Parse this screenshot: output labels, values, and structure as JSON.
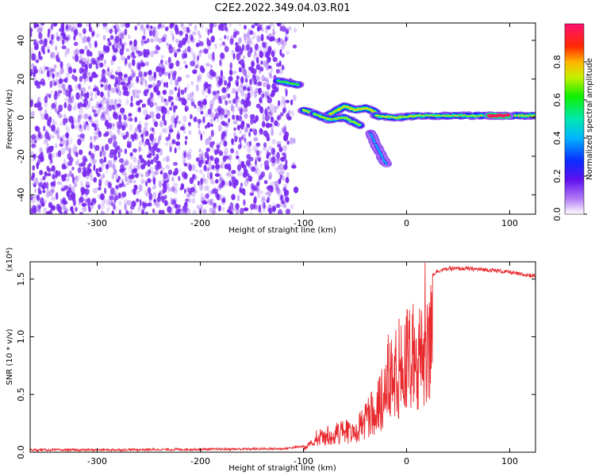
{
  "title": "C2E2.2022.349.04.03.R01",
  "colors": {
    "noise": "#7b2cf0",
    "snr_line": "#e8282c"
  },
  "chart_data": [
    {
      "type": "heatmap",
      "xlabel": "Height of straight line (km)",
      "ylabel": "Frequency (Hz)",
      "xlim": [
        -365,
        125
      ],
      "ylim": [
        -50,
        49
      ],
      "x_ticks": [
        -300,
        -200,
        -100,
        0,
        100
      ],
      "x_tick_labels": [
        "-300",
        "-200",
        "-100",
        "0",
        "100"
      ],
      "y_ticks": [
        -40,
        -20,
        0,
        20,
        40
      ],
      "y_tick_labels": [
        "-40",
        "-20",
        "0",
        "20",
        "40"
      ],
      "noise_region_x": [
        -365,
        -115
      ],
      "colorbar": {
        "label": "Normalized spectral amplitude",
        "range": [
          0.0,
          1.0
        ],
        "ticks": [
          0.0,
          0.2,
          0.4,
          0.6,
          0.8
        ],
        "tick_labels": [
          "0.0",
          "0.2",
          "0.4",
          "0.6",
          "0.8"
        ]
      },
      "features": [
        {
          "x": [
            -125,
            -105
          ],
          "y": [
            19,
            17
          ],
          "amplitude": 0.4
        },
        {
          "x": [
            -100,
            -90,
            -80,
            -70,
            -60,
            -50,
            -40,
            -30
          ],
          "y": [
            4,
            2,
            0,
            3,
            6,
            4,
            5,
            3
          ],
          "amplitude": 0.5
        },
        {
          "x": [
            -90,
            -75,
            -60,
            -45
          ],
          "y": [
            2,
            -1,
            0,
            -4
          ],
          "amplitude": 0.45
        },
        {
          "x": [
            -35,
            -30,
            -25,
            -20
          ],
          "y": [
            -8,
            -14,
            -19,
            -24
          ],
          "amplitude": 0.15
        },
        {
          "x": [
            -30,
            -10,
            10,
            40,
            70,
            100,
            125
          ],
          "y": [
            1,
            0,
            1,
            1,
            1,
            1,
            1
          ],
          "amplitude": 0.5
        },
        {
          "x": [
            80,
            98
          ],
          "y": [
            1,
            1
          ],
          "amplitude": 0.95
        }
      ]
    },
    {
      "type": "line",
      "xlabel": "Height of straight line (km)",
      "ylabel": "SNR (10 * v/v)",
      "y_multiplier": "(x10⁴)",
      "xlim": [
        -365,
        125
      ],
      "ylim": [
        0,
        16500
      ],
      "x_ticks": [
        -300,
        -200,
        -100,
        0,
        100
      ],
      "x_tick_labels": [
        "-300",
        "-200",
        "-100",
        "0",
        "100"
      ],
      "y_ticks": [
        0,
        5000,
        10000,
        15000
      ],
      "y_tick_labels": [
        "0.0",
        "0.5",
        "1.0",
        "1.5"
      ],
      "series": [
        {
          "x": [
            -365,
            -300,
            -200,
            -120,
            -100,
            -90,
            -85,
            -80,
            -70,
            -60,
            -50,
            -40,
            -30,
            -25,
            -20,
            -10,
            0,
            10,
            20,
            30,
            40,
            60,
            80,
            100,
            110,
            125
          ],
          "y": [
            200,
            200,
            250,
            300,
            500,
            1200,
            2200,
            1800,
            2500,
            2800,
            3000,
            4500,
            6000,
            7000,
            8500,
            11000,
            12500,
            13500,
            15000,
            15700,
            15900,
            15900,
            15800,
            15600,
            15400,
            15300
          ]
        }
      ]
    }
  ]
}
